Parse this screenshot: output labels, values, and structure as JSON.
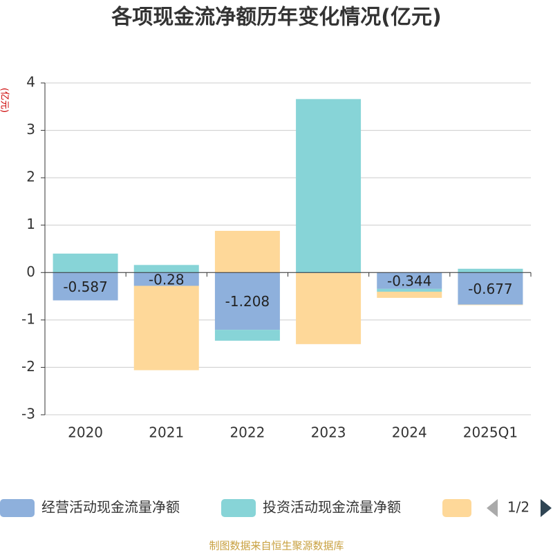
{
  "chart_data": {
    "type": "bar",
    "stacked": true,
    "title": "各项现金流净额历年变化情况(亿元)",
    "y_label": "(亿元)",
    "source": "制图数据来自恒生聚源数据库",
    "legend_page": "1/2",
    "categories": [
      "2020",
      "2021",
      "2022",
      "2023",
      "2024",
      "2025Q1"
    ],
    "series": [
      {
        "name": "经营活动现金流量净额",
        "color": "#8eb0dc",
        "values": [
          -0.587,
          -0.28,
          -1.208,
          -0.01,
          -0.344,
          -0.677
        ],
        "value_labels": [
          "-0.587",
          "-0.28",
          "-1.208",
          null,
          "-0.344",
          "-0.677"
        ]
      },
      {
        "name": "投资活动现金流量净额",
        "color": "#87d4d7",
        "values": [
          0.4,
          0.16,
          -0.23,
          3.66,
          -0.06,
          0.08
        ]
      },
      {
        "color": "#fed899",
        "values": [
          0,
          -1.78,
          0.88,
          -1.5,
          -0.13,
          -0.01
        ]
      }
    ],
    "ylim": [
      -3,
      4
    ],
    "yticks": [
      -3,
      -2,
      -1,
      0,
      1,
      2,
      3,
      4
    ],
    "grid": true
  }
}
